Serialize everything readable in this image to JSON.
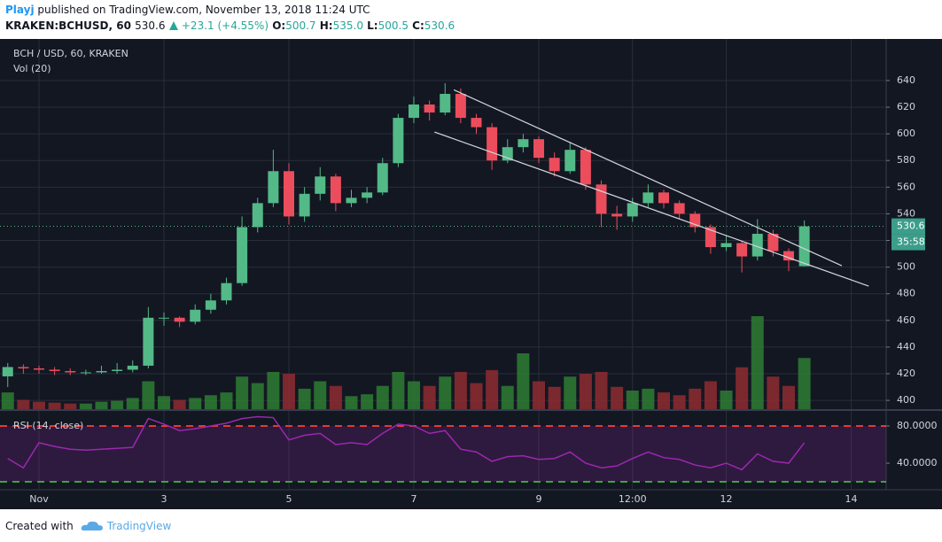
{
  "header": {
    "publisher": "Playj",
    "published": "published on TradingView.com, November 13, 2018 11:24 UTC",
    "symbol": "KRAKEN:BCHUSD, 60",
    "change": "+23.1 (+4.55%)",
    "o_label": "O:",
    "h_label": "H:",
    "h_value": "535.0",
    "l_label": "L:",
    "c_label": "C:"
  },
  "footer": {
    "created": "Created with",
    "brand": "TradingView"
  },
  "chart_data": {
    "type": "candlestick",
    "title": "BCH / USD, 60, KRAKEN",
    "x": [
      -0.5,
      -0.25,
      0,
      0.25,
      0.5,
      0.75,
      1,
      1.25,
      1.5,
      1.75,
      2,
      2.25,
      2.5,
      2.75,
      3,
      3.25,
      3.5,
      3.75,
      4,
      4.25,
      4.5,
      4.75,
      5,
      5.25,
      5.5,
      5.75,
      6,
      6.25,
      6.5,
      6.75,
      7,
      7.25,
      7.5,
      7.75,
      8,
      8.25,
      8.5,
      8.75,
      9,
      9.25,
      9.5,
      9.75,
      10,
      10.25,
      10.5,
      10.75,
      11,
      11.25,
      11.5,
      11.75,
      12,
      12.25
    ],
    "open": [
      418,
      425,
      424,
      423,
      422,
      421,
      421,
      422,
      423,
      426,
      462,
      462,
      459,
      468,
      475,
      488,
      530,
      548,
      572,
      538,
      555,
      568,
      548,
      552,
      556,
      578,
      612,
      622,
      616,
      630,
      612,
      605,
      580,
      590,
      596,
      582,
      572,
      588,
      562,
      540,
      538,
      548,
      556,
      548,
      540,
      530,
      515,
      518,
      508,
      525,
      512,
      500.7
    ],
    "high": [
      428,
      427,
      426,
      425,
      424,
      423,
      426,
      428,
      430,
      470,
      466,
      463,
      472,
      480,
      492,
      538,
      552,
      588,
      578,
      560,
      575,
      570,
      558,
      560,
      582,
      615,
      628,
      625,
      638,
      634,
      615,
      608,
      596,
      600,
      598,
      586,
      594,
      590,
      565,
      546,
      552,
      562,
      558,
      550,
      542,
      532,
      524,
      520,
      536,
      528,
      514,
      535
    ],
    "low": [
      410,
      420,
      420,
      419,
      419,
      419,
      420,
      420,
      421,
      424,
      456,
      455,
      457,
      465,
      472,
      486,
      526,
      545,
      532,
      534,
      550,
      542,
      545,
      548,
      554,
      575,
      608,
      610,
      614,
      608,
      600,
      573,
      578,
      586,
      578,
      568,
      570,
      558,
      530,
      528,
      534,
      545,
      544,
      536,
      526,
      510,
      512,
      496,
      505,
      508,
      497,
      500.5
    ],
    "close": [
      425,
      424,
      423,
      422,
      421,
      421,
      422,
      423,
      426,
      462,
      462,
      459,
      468,
      475,
      488,
      530,
      548,
      572,
      538,
      555,
      568,
      548,
      552,
      556,
      578,
      612,
      622,
      616,
      630,
      612,
      605,
      580,
      590,
      596,
      582,
      572,
      588,
      562,
      540,
      538,
      548,
      556,
      548,
      540,
      530,
      515,
      518,
      508,
      525,
      512,
      505,
      530.6
    ],
    "up_color": "#53b987",
    "down_color": "#eb4d5c",
    "xlim": [
      -0.624,
      13.56
    ],
    "xticks": [
      {
        "value": 0,
        "label": "Nov"
      },
      {
        "value": 2,
        "label": "3"
      },
      {
        "value": 4,
        "label": "5"
      },
      {
        "value": 6,
        "label": "7"
      },
      {
        "value": 8,
        "label": "9"
      },
      {
        "value": 9.5,
        "label": "12:00"
      },
      {
        "value": 11,
        "label": "12"
      },
      {
        "value": 13,
        "label": "14"
      }
    ],
    "ylim": [
      393.4,
      671.2
    ],
    "yticks": [
      400,
      420,
      440,
      460,
      480,
      500,
      520,
      540,
      560,
      580,
      600,
      620,
      640
    ],
    "grid": true,
    "countdown": "35:58",
    "volume": {
      "title": "Vol (20)",
      "ylim": [
        0,
        100
      ],
      "values": [
        18,
        10,
        8,
        7,
        6,
        6,
        8,
        9,
        12,
        30,
        14,
        10,
        12,
        15,
        18,
        35,
        28,
        40,
        38,
        22,
        30,
        25,
        14,
        16,
        25,
        40,
        30,
        25,
        35,
        40,
        28,
        42,
        25,
        60,
        30,
        24,
        35,
        38,
        40,
        24,
        20,
        22,
        18,
        15,
        22,
        30,
        20,
        45,
        100,
        35,
        25,
        55
      ]
    },
    "rsi": {
      "title": "RSI (14, close)",
      "color": "#9c27b0",
      "ylim": [
        11.4,
        96.2
      ],
      "yticks": [
        {
          "value": 80,
          "label": "80.0000"
        },
        {
          "value": 40,
          "label": "40.0000"
        }
      ],
      "upper_band": 80,
      "lower_band": 20,
      "values": [
        45,
        35,
        62,
        58,
        55,
        54,
        55,
        56,
        57,
        88,
        82,
        75,
        77,
        80,
        83,
        88,
        90,
        89,
        65,
        70,
        72,
        60,
        62,
        60,
        72,
        82,
        80,
        72,
        75,
        55,
        52,
        42,
        47,
        48,
        44,
        45,
        52,
        40,
        35,
        37,
        45,
        52,
        46,
        44,
        38,
        35,
        40,
        33,
        50,
        42,
        40,
        62
      ]
    },
    "trend_lines": [
      {
        "x": [
          6.64,
          12.85
        ],
        "y": [
          633,
          501
        ]
      },
      {
        "x": [
          6.33,
          13.28
        ],
        "y": [
          601.4,
          485.7
        ]
      }
    ]
  }
}
